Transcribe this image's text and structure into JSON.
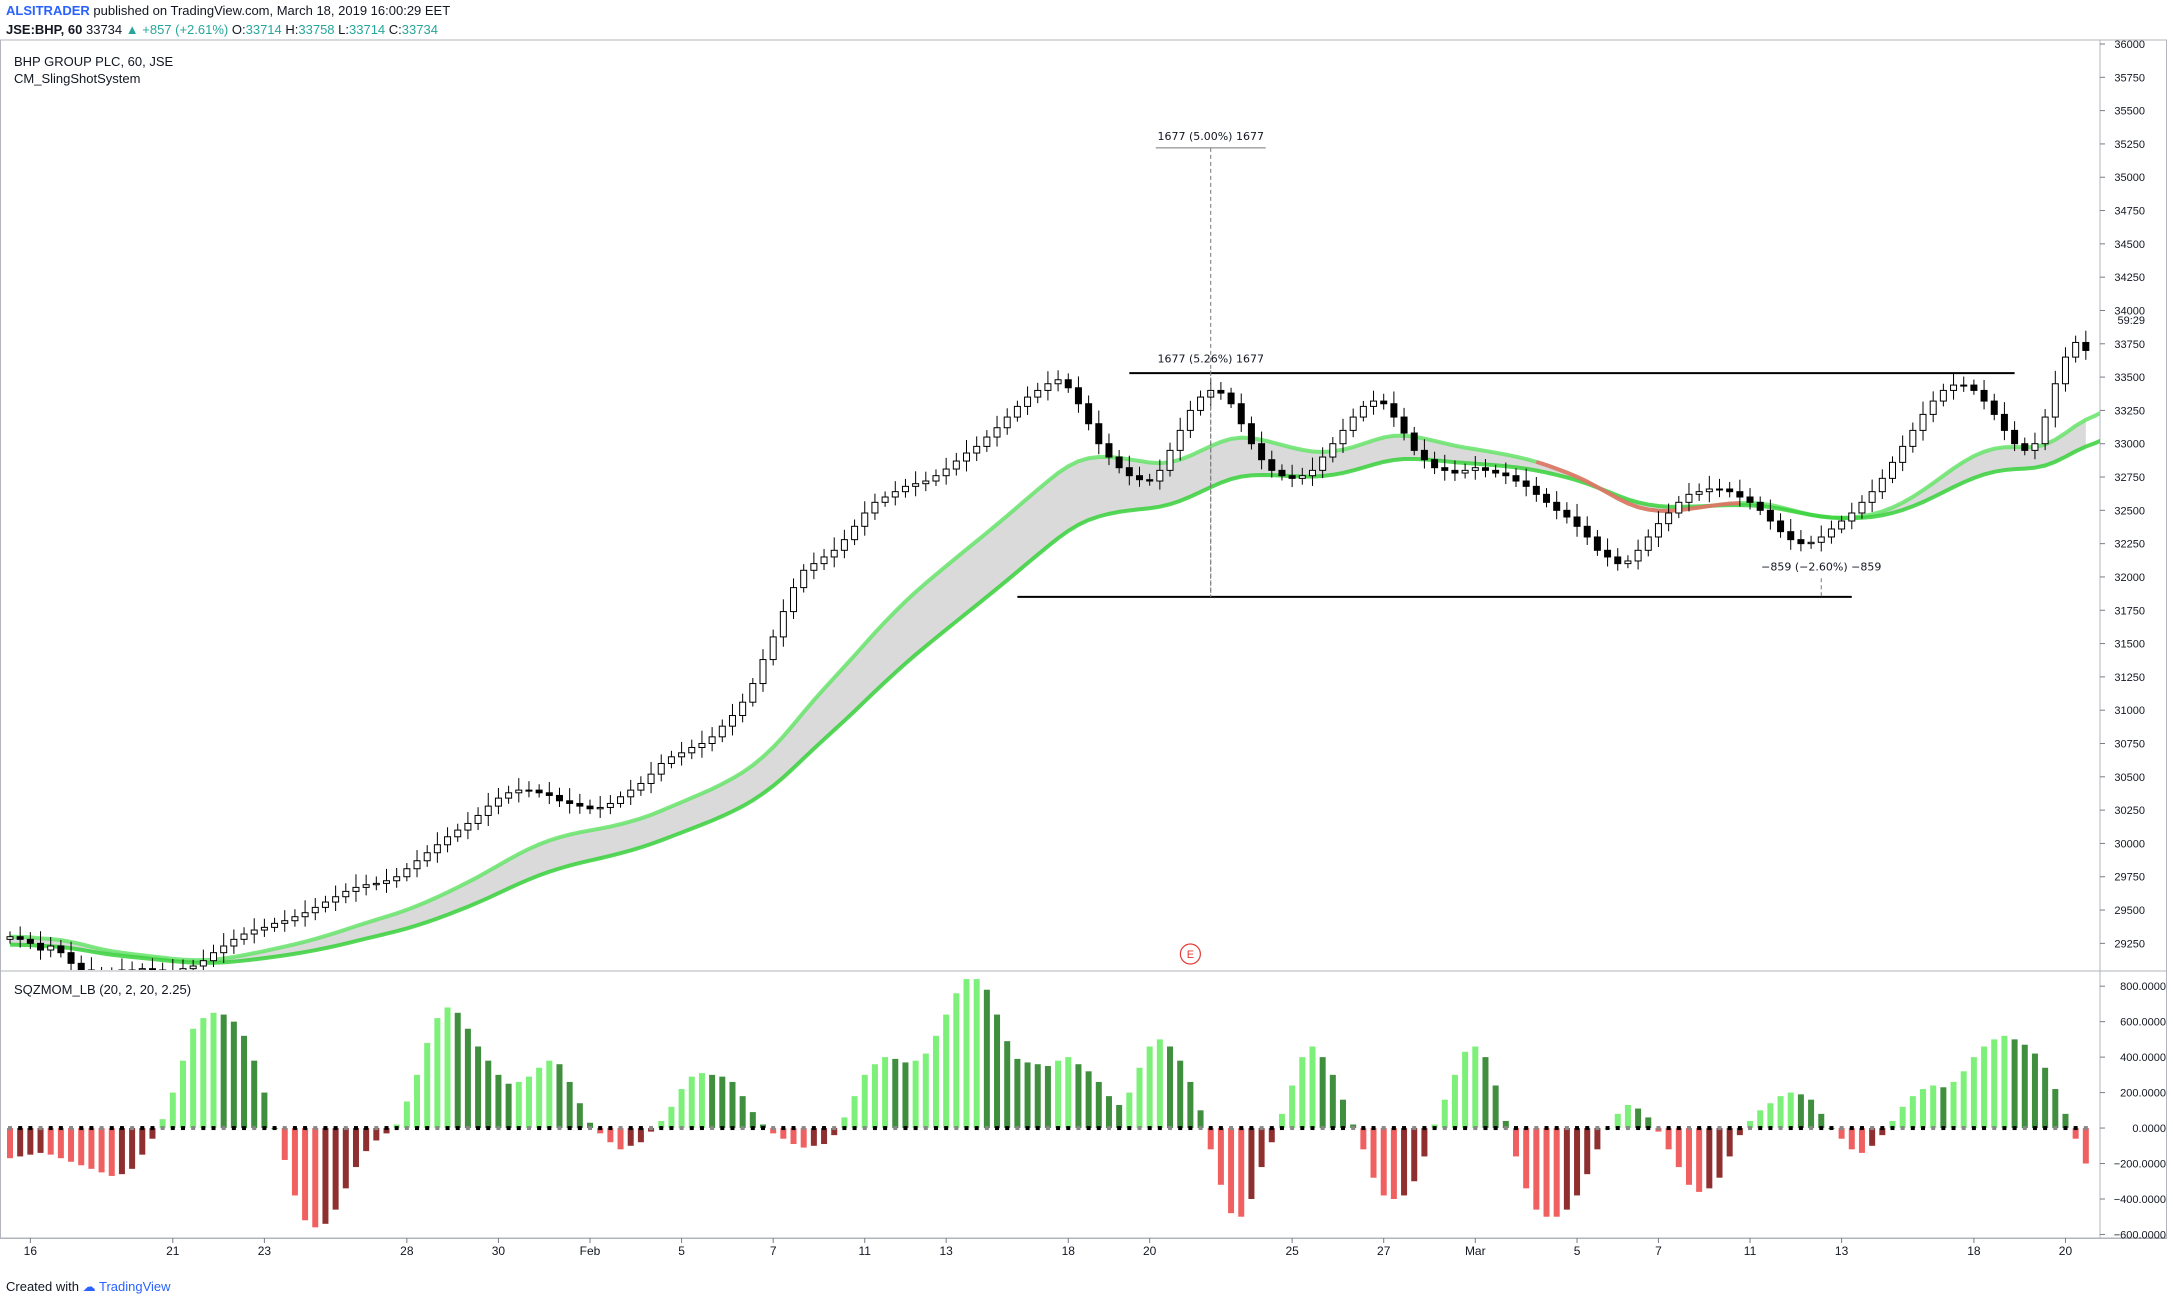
{
  "header": {
    "author": "ALSITRADER",
    "published_text": "published on TradingView.com, March 18, 2019 16:00:29 EET",
    "symbol": "JSE:BHP, 60",
    "last": "33734",
    "change": "▲ +857 (+2.61%)",
    "o_label": "O:",
    "o": "33714",
    "h_label": "H:",
    "h": "33758",
    "l_label": "L:",
    "l": "33714",
    "c_label": "C:",
    "c": "33734"
  },
  "price_pane": {
    "title": "BHP GROUP PLC, 60, JSE",
    "indicator": "CM_SlingShotSystem",
    "time_label": "59:29",
    "earnings_marker": "E"
  },
  "momentum_pane": {
    "title": "SQZMOM_LB (20, 2, 20, 2.25)"
  },
  "footer": {
    "created_with": "Created with",
    "brand": "TradingView"
  },
  "colors": {
    "up_candle": "#ffffff",
    "down_candle": "#000000",
    "ema_fast": "#66e36a",
    "ema_slow": "#37d13b",
    "band_fill": "#d6d6d6",
    "ema_bear": "#f06b6b",
    "mom_up_strong": "#7df07a",
    "mom_up_weak": "#3f8f3f",
    "mom_dn_strong": "#f06060",
    "mom_dn_weak": "#8f2f2f"
  },
  "chart_data": [
    {
      "type": "candlestick",
      "title": "BHP GROUP PLC, 60, JSE",
      "y_ticks": [
        29250,
        29500,
        29750,
        30000,
        30250,
        30500,
        30750,
        31000,
        31250,
        31500,
        31750,
        32000,
        32250,
        32500,
        32750,
        33000,
        33250,
        33500,
        33750,
        34000,
        34250,
        34500,
        34750,
        35000,
        35250,
        35500,
        35750,
        36000
      ],
      "ylim": [
        29050,
        36000
      ],
      "x_tick_labels": [
        "16",
        "21",
        "23",
        "28",
        "30",
        "Feb",
        "5",
        "7",
        "11",
        "13",
        "18",
        "20",
        "25",
        "27",
        "Mar",
        "5",
        "7",
        "11",
        "13",
        "18",
        "20"
      ],
      "x_tick_index": [
        2,
        16,
        25,
        39,
        48,
        57,
        66,
        75,
        84,
        92,
        104,
        112,
        126,
        135,
        144,
        154,
        162,
        171,
        180,
        193,
        202
      ],
      "x_count": 205,
      "close": [
        29300,
        29280,
        29250,
        29200,
        29230,
        29180,
        29100,
        29050,
        29000,
        29000,
        29020,
        29050,
        29050,
        29060,
        29050,
        29040,
        29030,
        29060,
        29080,
        29120,
        29180,
        29230,
        29280,
        29320,
        29350,
        29370,
        29400,
        29420,
        29450,
        29480,
        29520,
        29560,
        29600,
        29640,
        29670,
        29690,
        29700,
        29720,
        29750,
        29810,
        29870,
        29930,
        29990,
        30050,
        30100,
        30150,
        30210,
        30280,
        30340,
        30380,
        30400,
        30400,
        30380,
        30360,
        30320,
        30300,
        30280,
        30260,
        30270,
        30300,
        30350,
        30400,
        30450,
        30520,
        30600,
        30650,
        30680,
        30720,
        30750,
        30800,
        30880,
        30960,
        31060,
        31200,
        31380,
        31550,
        31740,
        31920,
        32050,
        32100,
        32150,
        32200,
        32280,
        32380,
        32480,
        32560,
        32600,
        32640,
        32680,
        32700,
        32720,
        32760,
        32810,
        32870,
        32930,
        32980,
        33050,
        33120,
        33200,
        33280,
        33350,
        33400,
        33450,
        33480,
        33420,
        33300,
        33150,
        33000,
        32900,
        32820,
        32760,
        32730,
        32720,
        32800,
        32950,
        33100,
        33250,
        33350,
        33400,
        33380,
        33300,
        33150,
        33000,
        32880,
        32800,
        32760,
        32740,
        32760,
        32800,
        32900,
        33000,
        33100,
        33200,
        33280,
        33320,
        33300,
        33200,
        33080,
        32950,
        32880,
        32820,
        32800,
        32780,
        32800,
        32820,
        32800,
        32780,
        32760,
        32720,
        32680,
        32620,
        32560,
        32500,
        32450,
        32380,
        32300,
        32200,
        32150,
        32100,
        32120,
        32200,
        32300,
        32400,
        32480,
        32560,
        32620,
        32640,
        32660,
        32660,
        32640,
        32600,
        32560,
        32500,
        32420,
        32340,
        32280,
        32250,
        32260,
        32300,
        32360,
        32420,
        32480,
        32560,
        32640,
        32740,
        32860,
        32980,
        33100,
        33220,
        33320,
        33400,
        33440,
        33440,
        33400,
        33320,
        33220,
        33100,
        33000,
        32950,
        33000,
        33200,
        33450,
        33650,
        33760,
        33700,
        33600,
        33734
      ],
      "series": [
        {
          "name": "",
          "values": []
        }
      ],
      "annotations": [
        {
          "text": "1677 (5.00%) 1677",
          "x_index": 118,
          "y": 35280
        },
        {
          "text": "1677 (5.26%) 1677",
          "x_index": 118,
          "y": 33610
        },
        {
          "text": "−859 (−2.60%) −859",
          "x_index": 178,
          "y": 32050
        }
      ],
      "horizontal_lines": [
        {
          "y": 33530,
          "x_from": 110,
          "x_to": 197
        },
        {
          "y": 31850,
          "x_from": 99,
          "x_to": 181
        }
      ]
    },
    {
      "type": "bar",
      "title": "SQZMOM_LB (20, 2, 20, 2.25)",
      "y_ticks": [
        -600,
        -400,
        -200,
        0,
        200,
        400,
        600,
        800
      ],
      "ylim": [
        -620,
        880
      ],
      "values_note": "",
      "values": [
        -170,
        -160,
        -150,
        -140,
        -150,
        -170,
        -190,
        -210,
        -230,
        -250,
        -270,
        -260,
        -230,
        -150,
        -60,
        50,
        200,
        380,
        560,
        620,
        650,
        640,
        600,
        520,
        380,
        200,
        0,
        -180,
        -380,
        -520,
        -560,
        -540,
        -460,
        -340,
        -220,
        -130,
        -70,
        -30,
        20,
        150,
        300,
        480,
        620,
        680,
        650,
        560,
        460,
        380,
        300,
        250,
        260,
        290,
        340,
        380,
        360,
        260,
        140,
        30,
        -30,
        -80,
        -120,
        -100,
        -80,
        -20,
        40,
        120,
        220,
        290,
        310,
        300,
        290,
        260,
        180,
        90,
        20,
        -30,
        -60,
        -90,
        -110,
        -100,
        -90,
        -40,
        60,
        180,
        300,
        360,
        400,
        390,
        370,
        380,
        420,
        520,
        640,
        760,
        840,
        840,
        780,
        640,
        490,
        390,
        370,
        360,
        350,
        380,
        400,
        360,
        320,
        260,
        180,
        130,
        200,
        340,
        460,
        500,
        460,
        380,
        260,
        100,
        -120,
        -320,
        -480,
        -500,
        -400,
        -220,
        -80,
        80,
        240,
        400,
        460,
        400,
        300,
        160,
        20,
        -120,
        -280,
        -380,
        -400,
        -380,
        -300,
        -160,
        20,
        160,
        300,
        430,
        460,
        400,
        240,
        40,
        -160,
        -340,
        -460,
        -500,
        -500,
        -460,
        -380,
        -260,
        -120,
        0,
        80,
        130,
        110,
        60,
        -20,
        -120,
        -220,
        -320,
        -360,
        -340,
        -280,
        -160,
        -40,
        40,
        100,
        140,
        180,
        200,
        190,
        160,
        80,
        0,
        -60,
        -120,
        -140,
        -100,
        -40,
        40,
        120,
        180,
        220,
        240,
        230,
        260,
        320,
        400,
        460,
        500,
        520,
        500,
        470,
        420,
        340,
        220,
        80,
        -60,
        -200,
        -280,
        -160,
        -20,
        120,
        160,
        240
      ],
      "colors_rule": "lighter when rising, darker when falling"
    }
  ]
}
